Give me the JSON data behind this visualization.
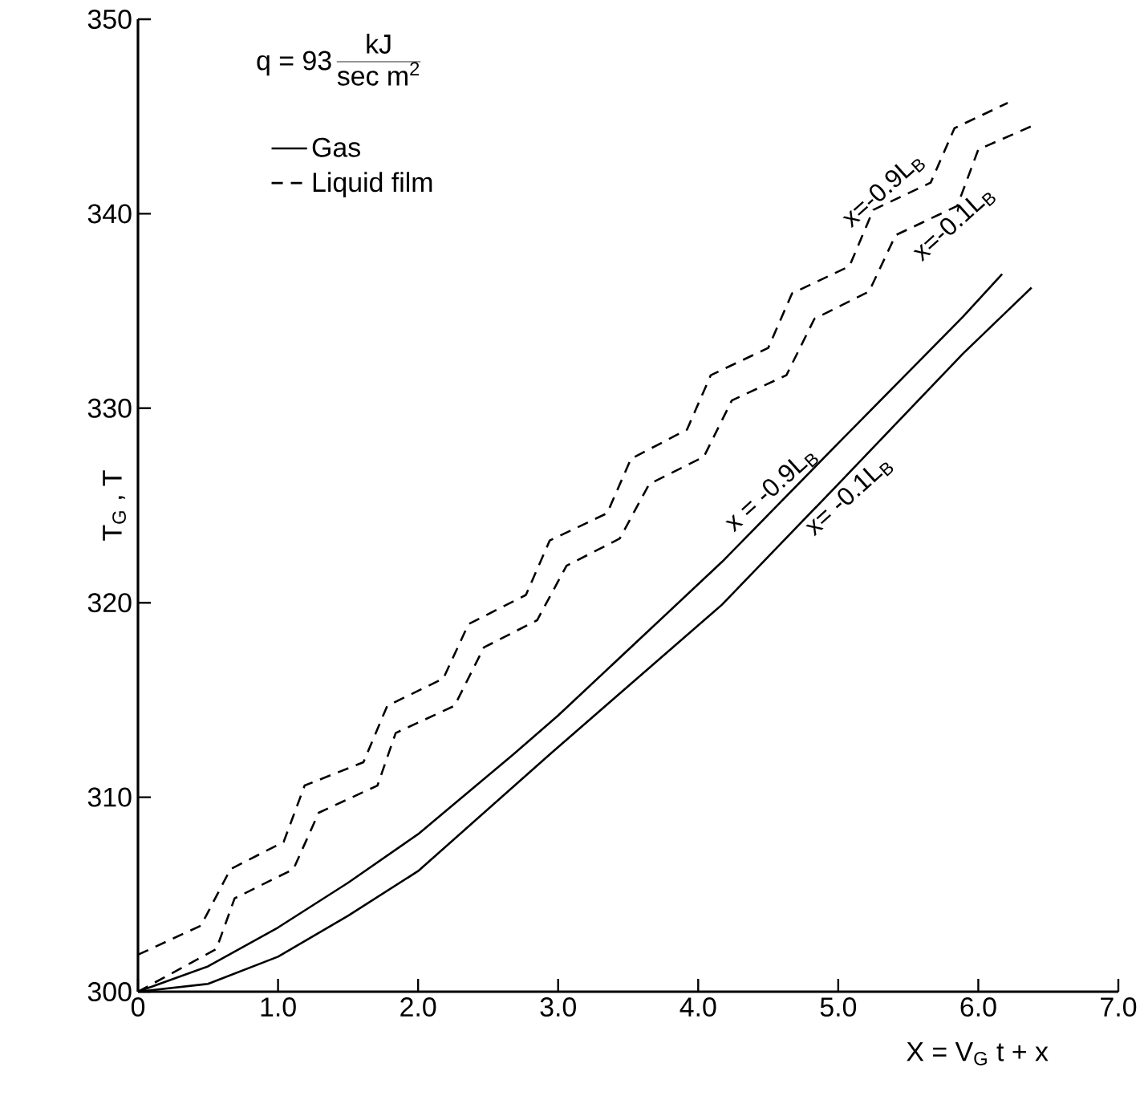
{
  "chart_data": {
    "type": "line",
    "xlabel": "X = V$_{G}$ t + x",
    "ylabel": "T$_{G}$ , T",
    "xlim": [
      0,
      7
    ],
    "ylim": [
      300,
      350
    ],
    "xticks": [
      0,
      {
        "value": 1,
        "label": "1.0"
      },
      {
        "value": 2,
        "label": "2.0"
      },
      {
        "value": 3,
        "label": "3.0"
      },
      {
        "value": 4,
        "label": "4.0"
      },
      {
        "value": 5,
        "label": "5.0"
      },
      {
        "value": 6,
        "label": "6.0"
      },
      {
        "value": 7,
        "label": "7.0"
      }
    ],
    "yticks": [
      300,
      310,
      320,
      330,
      340,
      350
    ],
    "legend": "top left",
    "marker": "none",
    "grid": false,
    "series": [
      {
        "name": "Gas",
        "color": "#000000",
        "line_style": "solid",
        "x": [
          0,
          0.5,
          1.0,
          1.5,
          2.0,
          2.68,
          3.0,
          4.17,
          5.0,
          5.89,
          6.17
        ],
        "values": [
          300,
          301.3,
          303.3,
          305.6,
          308.1,
          312.2,
          314.2,
          322.1,
          328.2,
          334.7,
          336.9
        ]
      },
      {
        "color": "#000000",
        "line_style": "solid",
        "x": [
          0,
          0.5,
          1.0,
          1.5,
          2.0,
          2.94,
          4.17,
          5.0,
          5.89,
          6.38
        ],
        "values": [
          300,
          300.4,
          301.8,
          303.9,
          306.2,
          312.2,
          319.9,
          326.1,
          332.8,
          336.2
        ]
      },
      {
        "name": "Liquid film",
        "color": "#000000",
        "line_style": "dashed",
        "x": [
          0,
          0.45,
          0.66,
          1.04,
          1.19,
          1.61,
          1.78,
          2.18,
          2.36,
          2.77,
          2.94,
          3.35,
          3.52,
          3.92,
          4.09,
          4.5,
          4.67,
          5.08,
          5.25,
          5.66,
          5.83,
          6.21
        ],
        "values": [
          301.9,
          303.4,
          306.3,
          307.7,
          310.6,
          311.8,
          314.7,
          316.1,
          318.9,
          320.4,
          323.2,
          324.6,
          327.4,
          328.9,
          331.7,
          333.1,
          335.9,
          337.3,
          340.2,
          341.6,
          344.4,
          345.7
        ]
      },
      {
        "color": "#000000",
        "line_style": "dashed",
        "x": [
          0,
          0.56,
          0.69,
          1.11,
          1.29,
          1.71,
          1.84,
          2.26,
          2.47,
          2.85,
          3.06,
          3.44,
          3.65,
          4.04,
          4.24,
          4.63,
          4.83,
          5.22,
          5.41,
          5.85,
          6.0,
          6.38
        ],
        "values": [
          300,
          302.2,
          304.8,
          306.3,
          309.2,
          310.6,
          313.3,
          314.7,
          317.7,
          319.1,
          321.9,
          323.3,
          326.1,
          327.5,
          330.4,
          331.7,
          334.6,
          336.0,
          338.9,
          340.4,
          343.3,
          344.5
        ]
      }
    ],
    "annotations": [
      "q = 93",
      "kJ",
      "sec m$^{2}$",
      {
        "text": "x=-0.9L$_{B}$",
        "x": 5.4,
        "y": 340.6
      },
      {
        "text": "x=-0.1L$_{B}$",
        "x": 5.75,
        "y": 340.1
      },
      {
        "text": "x = -0.9L$_{B}$",
        "x": 4.6,
        "y": 325.2
      },
      {
        "text": "x= -0.1L$_{B}$",
        "x": 5.0,
        "y": 326.1
      }
    ]
  }
}
